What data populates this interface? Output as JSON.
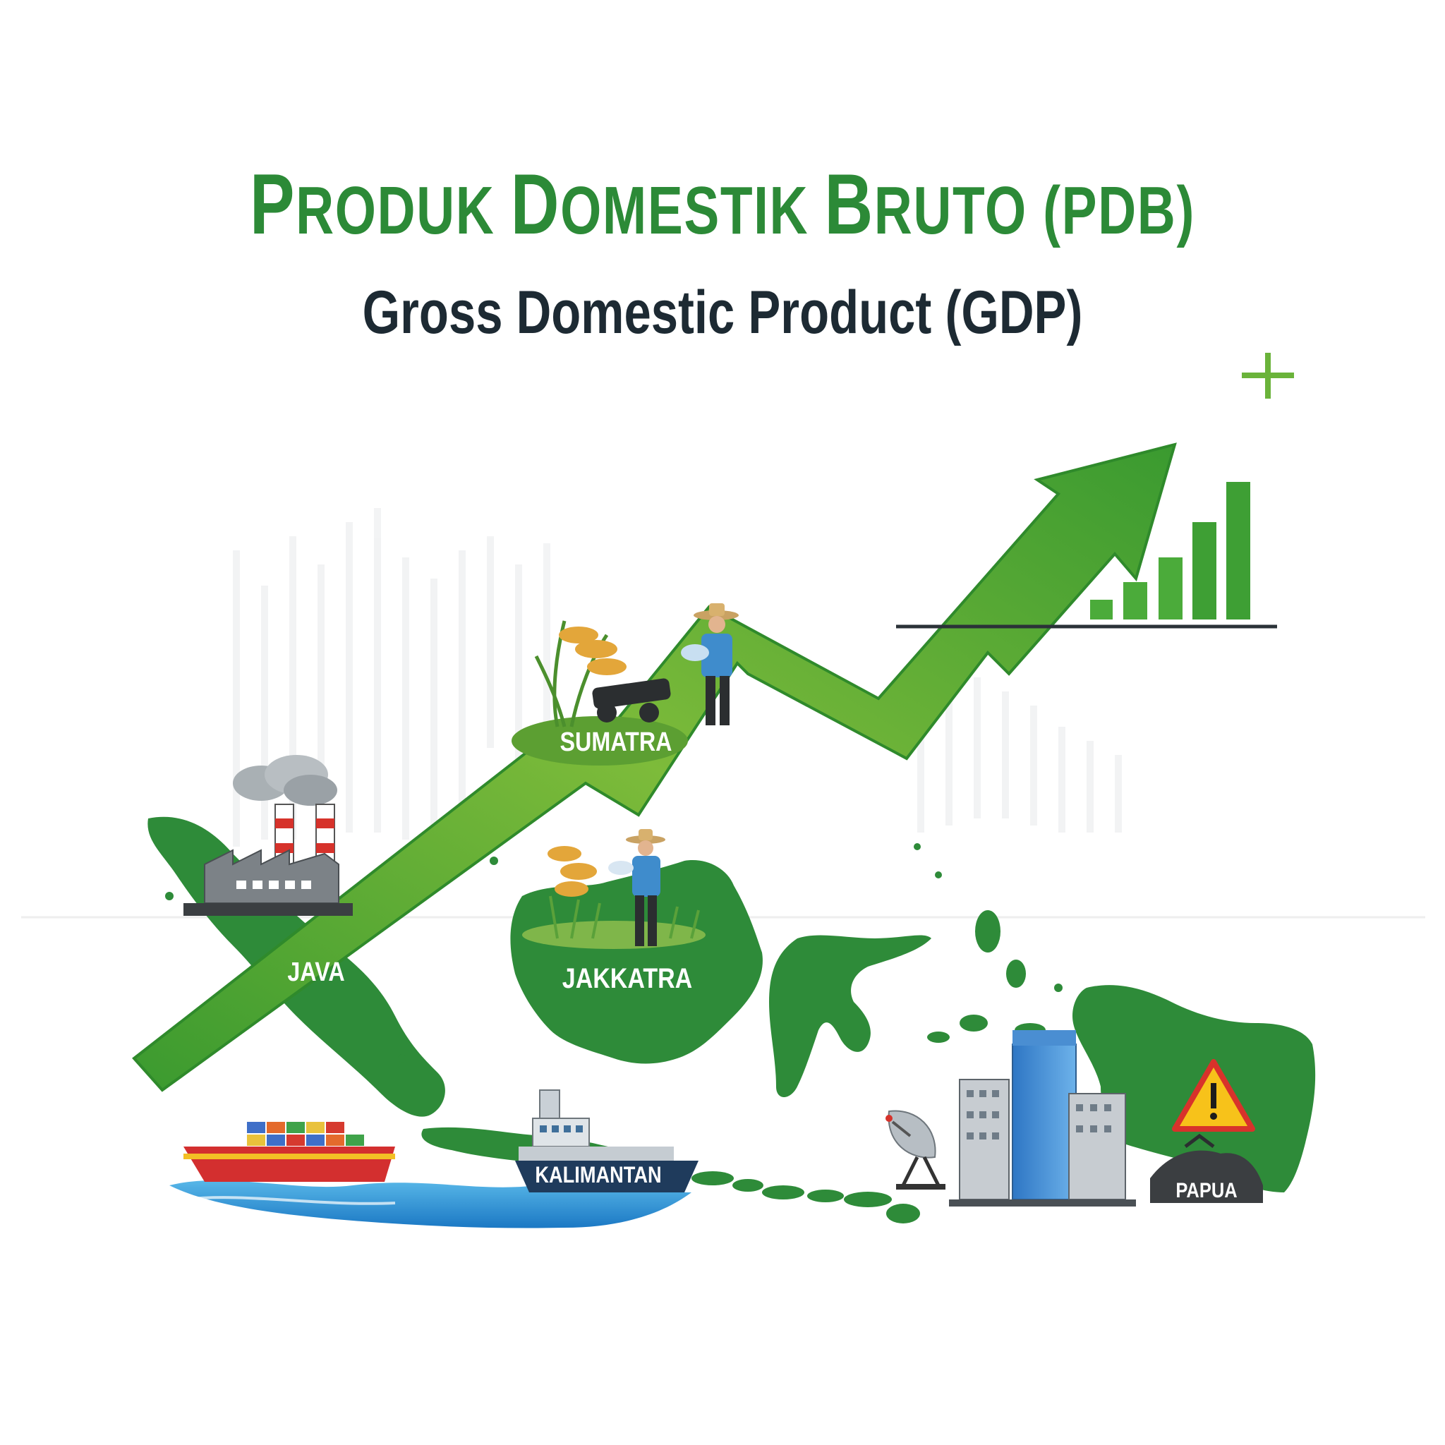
{
  "title": {
    "first": "P",
    "rest_1": "RODUK ",
    "d": "D",
    "rest_2": "OMESTIK ",
    "b": "B",
    "rest_3": "RUTO (PDB)"
  },
  "subtitle": "Gross Domestic Product (GDP)",
  "regions": {
    "java": "JAVA",
    "sumatra": "SUMATRA",
    "jakkatra": "JAKKATRA",
    "kalimantan": "KALIMANTAN",
    "papua": "PAPUA"
  },
  "colors": {
    "title_green": "#2c8a37",
    "subtitle_dark": "#1d2a33",
    "map_green": "#2e8b39",
    "arrow_light": "#8cc63f",
    "arrow_dark": "#3b9a2f",
    "warning_yellow": "#f7c21a",
    "warning_red": "#d8322b"
  },
  "icons": [
    "factory-icon",
    "farmer-icon",
    "rice-plant-icon",
    "cargo-ship-icon",
    "ferry-icon",
    "satellite-dish-icon",
    "office-buildings-icon",
    "warning-sign-icon",
    "mining-icon",
    "bar-chart-icon",
    "plus-icon",
    "growth-arrow-icon"
  ]
}
